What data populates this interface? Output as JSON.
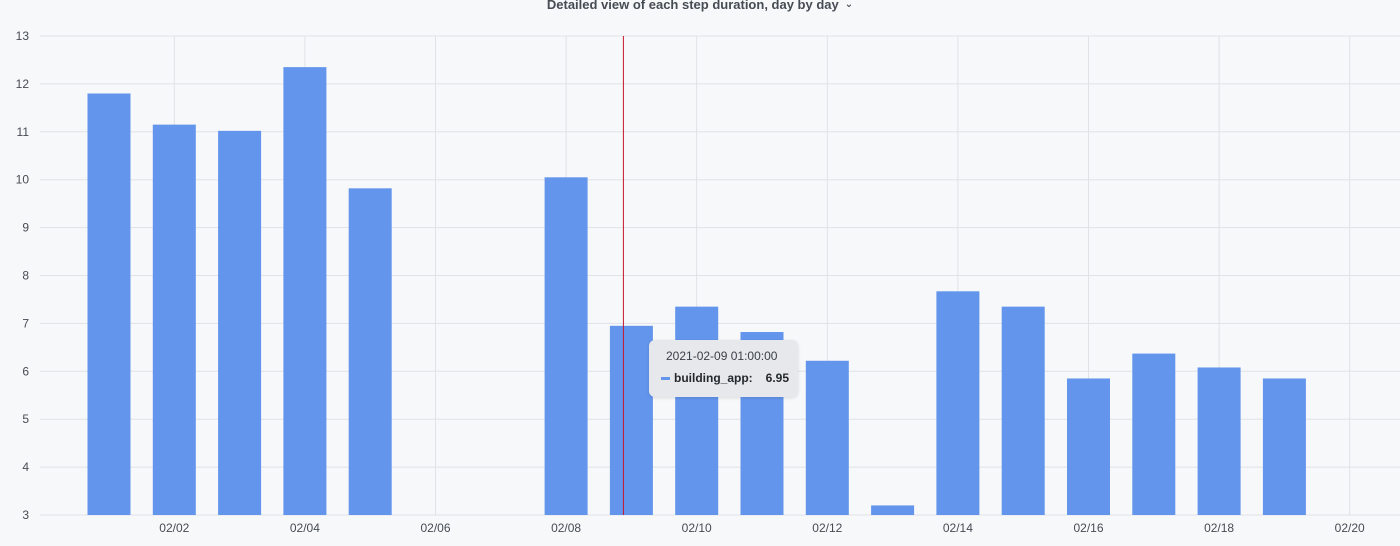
{
  "panel": {
    "title": "Detailed view of each step duration, day by day",
    "title_chevron_icon": "chevron-down-icon"
  },
  "colors": {
    "bar": "#6395ec",
    "grid": "#dfe2e7",
    "axis_text": "#464c54",
    "cursor": "#c4162a",
    "tooltip_bg": "#e6e8ec"
  },
  "chart_data": {
    "type": "bar",
    "title": "Detailed view of each step duration, day by day",
    "xlabel": "",
    "ylabel": "",
    "x_ticks": [
      "02/02",
      "02/04",
      "02/06",
      "02/08",
      "02/10",
      "02/12",
      "02/14",
      "02/16",
      "02/18",
      "02/20"
    ],
    "y_ticks": [
      3,
      4,
      5,
      6,
      7,
      8,
      9,
      10,
      11,
      12,
      13
    ],
    "ylim": [
      3,
      13
    ],
    "xlim": [
      "2021-02-01",
      "2021-02-21"
    ],
    "grid": true,
    "series": [
      {
        "name": "building_app",
        "points": [
          {
            "date": "2021-02-01",
            "value": 11.8
          },
          {
            "date": "2021-02-02",
            "value": 11.15
          },
          {
            "date": "2021-02-03",
            "value": 11.02
          },
          {
            "date": "2021-02-04",
            "value": 12.35
          },
          {
            "date": "2021-02-05",
            "value": 9.82
          },
          {
            "date": "2021-02-08",
            "value": 10.05
          },
          {
            "date": "2021-02-09",
            "value": 6.95
          },
          {
            "date": "2021-02-10",
            "value": 7.35
          },
          {
            "date": "2021-02-11",
            "value": 6.82
          },
          {
            "date": "2021-02-12",
            "value": 6.22
          },
          {
            "date": "2021-02-13",
            "value": 3.2
          },
          {
            "date": "2021-02-14",
            "value": 7.67
          },
          {
            "date": "2021-02-15",
            "value": 7.35
          },
          {
            "date": "2021-02-16",
            "value": 5.85
          },
          {
            "date": "2021-02-17",
            "value": 6.37
          },
          {
            "date": "2021-02-18",
            "value": 6.08
          },
          {
            "date": "2021-02-19",
            "value": 5.85
          }
        ]
      }
    ]
  },
  "tooltip": {
    "time": "2021-02-09 01:00:00",
    "series": "building_app:",
    "value": "6.95"
  }
}
